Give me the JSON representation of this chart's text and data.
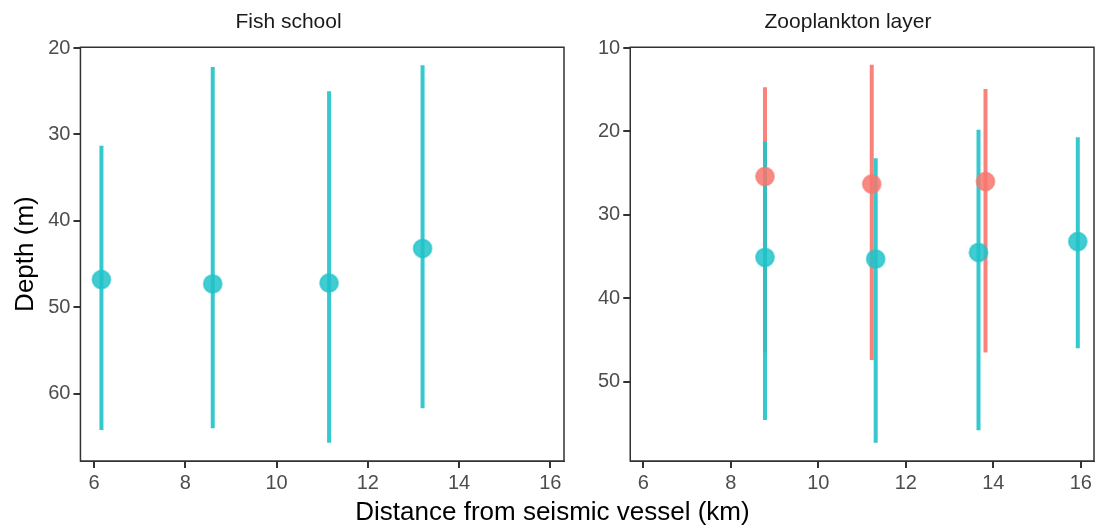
{
  "chart_data": [
    {
      "type": "scatter",
      "title": "Fish school",
      "xlabel": "Distance from seismic vessel (km)",
      "ylabel": "Depth (m)",
      "marker": "circle",
      "grid": false,
      "legend": false,
      "xlim": [
        5.7,
        16.3
      ],
      "xticks": [
        6,
        8,
        10,
        12,
        14,
        16
      ],
      "ylim": [
        67.8,
        19.9
      ],
      "yticks": [
        20,
        30,
        40,
        50,
        60
      ],
      "series": [
        {
          "color": "#1fc3c9",
          "x": [
            6.16,
            8.6,
            11.15,
            13.2
          ],
          "values": [
            46.8,
            47.3,
            47.2,
            43.2
          ],
          "errors": [
            [
              31.3,
              64.2
            ],
            [
              22.2,
              64.0
            ],
            [
              25.0,
              65.7
            ],
            [
              22.0,
              61.7
            ]
          ]
        }
      ]
    },
    {
      "type": "scatter",
      "title": "Zooplankton layer",
      "marker": "circle",
      "grid": false,
      "legend": false,
      "xlim": [
        5.7,
        16.3
      ],
      "xticks": [
        6,
        8,
        10,
        12,
        14,
        16
      ],
      "ylim": [
        59.5,
        9.9
      ],
      "yticks": [
        10,
        20,
        30,
        40,
        50
      ],
      "series": [
        {
          "color": "#f8766d",
          "x": [
            8.78,
            11.22,
            13.82
          ],
          "values": [
            25.4,
            26.3,
            26.0
          ],
          "errors": [
            [
              14.7,
              46.5
            ],
            [
              12.0,
              47.4
            ],
            [
              14.9,
              46.5
            ]
          ]
        },
        {
          "color": "#1fc3c9",
          "x": [
            8.78,
            11.31,
            13.66,
            15.93
          ],
          "values": [
            35.1,
            35.3,
            34.5,
            33.2
          ],
          "errors": [
            [
              21.2,
              54.6
            ],
            [
              23.2,
              57.3
            ],
            [
              19.8,
              55.8
            ],
            [
              20.7,
              46.0
            ]
          ]
        }
      ]
    }
  ]
}
